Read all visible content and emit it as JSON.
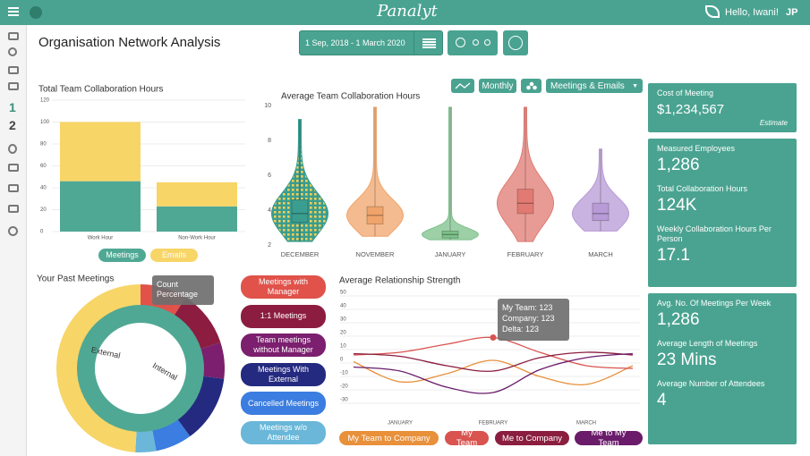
{
  "header": {
    "logo": "Panalyt",
    "greeting": "Hello, Iwani!",
    "initials": "JP"
  },
  "sidebar": {
    "labels": [
      "1",
      "2"
    ]
  },
  "page_title": "Organisation Network Analysis",
  "date_range": "1 Sep, 2018 - 1 March 2020",
  "cards": [
    {
      "items": [
        {
          "label": "Cost of Meeting",
          "value": "$1,234,567",
          "note": "Estimate"
        }
      ]
    },
    {
      "items": [
        {
          "label": "Measured Employees",
          "value": "1,286"
        },
        {
          "label": "Total Collaboration Hours",
          "value": "124K"
        },
        {
          "label": "Weekly Collaboration Hours Per Person",
          "value": "17.1"
        }
      ]
    },
    {
      "items": [
        {
          "label": "Avg. No. Of Meetings Per Week",
          "value": "1,286"
        },
        {
          "label": "Average Length of Meetings",
          "value": "23 Mins"
        },
        {
          "label": "Average Number of Attendees",
          "value": "4"
        }
      ]
    }
  ],
  "chart_data": [
    {
      "type": "bar",
      "stacked": true,
      "title": "Total Team Collaboration Hours",
      "categories": [
        "Work Hour",
        "Non-Work Hour"
      ],
      "series": [
        {
          "name": "Meetings",
          "color": "#4fa894",
          "values": [
            46,
            23
          ]
        },
        {
          "name": "Emails",
          "color": "#f7d567",
          "values": [
            54,
            22
          ]
        }
      ],
      "ylim": [
        0,
        120
      ],
      "yticks": [
        0,
        20,
        40,
        60,
        80,
        100,
        120
      ],
      "grid": true
    },
    {
      "type": "violin",
      "title": "Average Team Collaboration Hours",
      "controls": [
        "Monthly",
        "Meetings & Emails"
      ],
      "categories": [
        "DECEMBER",
        "NOVEMBER",
        "JANUARY",
        "FEBRUARY",
        "MARCH"
      ],
      "colors": [
        "#3a9d8f",
        "#f0a46b",
        "#7cc08a",
        "#e07a72",
        "#b79ad6"
      ],
      "min": [
        2.2,
        2.5,
        2.3,
        2.2,
        2.8
      ],
      "q1": [
        3.3,
        3.2,
        2.4,
        3.8,
        3.4
      ],
      "median": [
        3.8,
        3.7,
        2.6,
        4.4,
        3.8
      ],
      "q3": [
        4.6,
        4.2,
        2.8,
        5.2,
        4.4
      ],
      "max": [
        9.2,
        9.9,
        9.9,
        9.9,
        7.5
      ],
      "ylim": [
        2,
        10
      ],
      "yticks": [
        2,
        4,
        6,
        8,
        10
      ]
    },
    {
      "type": "donut",
      "title": "Your Past Meetings",
      "tooltip": "Count Percentage",
      "categories": [
        "Meetings with Manager",
        "1:1 Meetings",
        "Team meetings without Manager",
        "Meetings With External",
        "Cancelled Meetings",
        "Meetings w/o Attendee",
        "External"
      ],
      "values": [
        9,
        11,
        7,
        13,
        7,
        4,
        49
      ],
      "colors": [
        "#e0524a",
        "#8c1d40",
        "#7b1f6e",
        "#242a80",
        "#3b7de0",
        "#6ab7d9",
        "#f7d567"
      ],
      "inner": {
        "name": "Internal",
        "color": "#4fa894"
      }
    },
    {
      "type": "line",
      "title": "Average Relationship Strength",
      "tooltip": [
        "My Team: 123",
        "Company: 123",
        "Delta: 123"
      ],
      "categories": [
        null,
        "JANUARY",
        null,
        "FEBRUARY",
        null,
        "MARCH",
        null
      ],
      "series": [
        {
          "name": "My Team to Company",
          "color": "#e8903a",
          "values": [
            1,
            -14,
            -8,
            2,
            -10,
            -16,
            -2
          ]
        },
        {
          "name": "My Team",
          "color": "#d9534f",
          "values": [
            6,
            8,
            14,
            19,
            8,
            -2,
            -4
          ]
        },
        {
          "name": "Me to Company",
          "color": "#8b1e3f",
          "values": [
            7,
            5,
            -2,
            -6,
            4,
            8,
            6
          ]
        },
        {
          "name": "Me to My Team",
          "color": "#6a1b6a",
          "values": [
            -3,
            -6,
            -18,
            -22,
            -5,
            4,
            7
          ]
        }
      ],
      "ylim": [
        -30,
        50
      ],
      "yticks": [
        -30,
        -20,
        -10,
        0,
        10,
        20,
        30,
        40,
        50
      ],
      "grid": true
    }
  ]
}
